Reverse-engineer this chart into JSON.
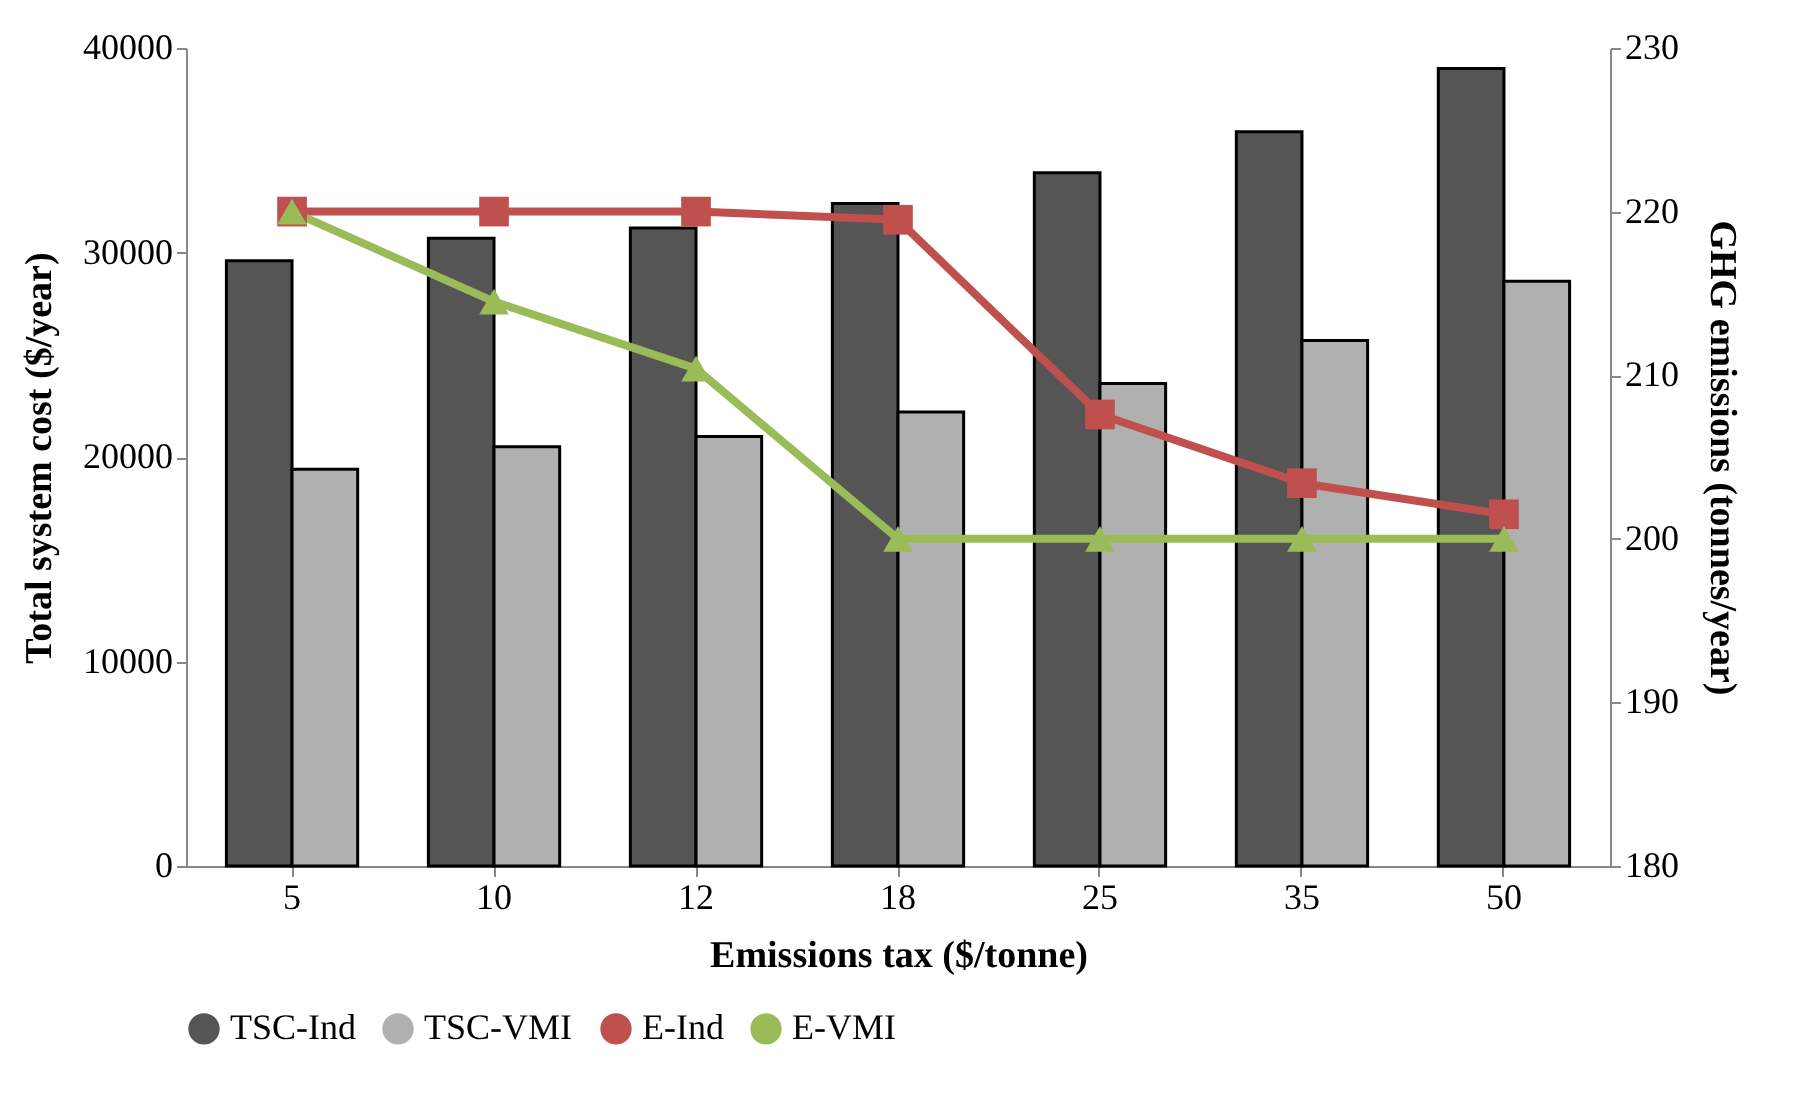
{
  "chart_data": {
    "type": "bar",
    "xlabel": "Emissions tax ($/tonne)",
    "ylabel": "Total system cost ($/year)",
    "y2label": "GHG emissions (tonnes/year)",
    "categories": [
      "5",
      "10",
      "12",
      "18",
      "25",
      "35",
      "50"
    ],
    "series": [
      {
        "name": "TSC-Ind",
        "color": "#555555",
        "values": [
          29600,
          30700,
          31200,
          32400,
          33900,
          35900,
          39000
        ]
      },
      {
        "name": "TSC-VMI",
        "color": "#b0b0b0",
        "values": [
          19400,
          20500,
          21000,
          22200,
          23600,
          25700,
          28600
        ]
      },
      {
        "name": "E-Ind",
        "type": "line",
        "axis": "y2",
        "marker": "square",
        "color": "#c0504d",
        "values": [
          220,
          220,
          220,
          219.5,
          207.6,
          203.4,
          201.5
        ]
      },
      {
        "name": "E-VMI",
        "type": "line",
        "axis": "y2",
        "marker": "triangle",
        "color": "#9bbb59",
        "values": [
          220,
          214.5,
          210.4,
          200,
          200,
          200,
          200
        ]
      }
    ],
    "ylim": [
      0,
      40000
    ],
    "yticks": [
      0,
      10000,
      20000,
      30000,
      40000
    ],
    "y2lim": [
      180,
      230
    ],
    "y2ticks": [
      180,
      190,
      200,
      210,
      220,
      230
    ],
    "grid": false,
    "legend": "bottom"
  }
}
